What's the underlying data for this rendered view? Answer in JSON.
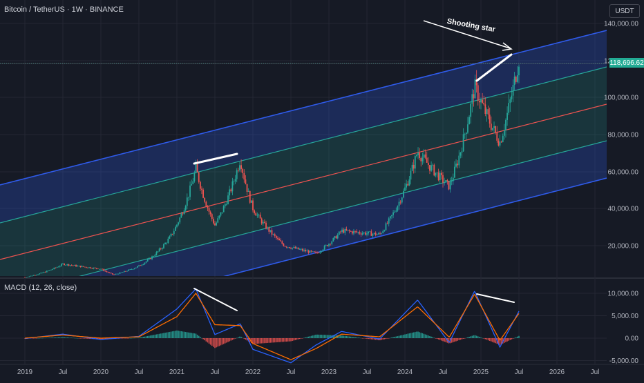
{
  "header": {
    "title": "Bitcoin / TetherUS · 1W · BINANCE",
    "currency": "USDT"
  },
  "annotation": "Shooting star",
  "price_badge": "118,696.62",
  "macd_title": "MACD (12, 26, close)",
  "colors": {
    "background": "#161a25",
    "channel_outer": "#2f5bea",
    "channel_inner": "#26a69a",
    "channel_mid": "#ef5350",
    "candle_up": "#26a69a",
    "candle_down": "#ef5350",
    "macd_line": "#2962ff",
    "signal_line": "#ff6d00",
    "annotation": "#ffffff"
  },
  "chart_data": [
    {
      "type": "candlestick",
      "title": "Bitcoin / TetherUS · 1W · BINANCE",
      "x_ticks": [
        "2019",
        "Jul",
        "2020",
        "Jul",
        "2021",
        "Jul",
        "2022",
        "Jul",
        "2023",
        "Jul",
        "2024",
        "Jul",
        "2025",
        "Jul",
        "2026",
        "Jul"
      ],
      "y_ticks": [
        "140,000.00",
        "120,000.00",
        "100,000.00",
        "80,000.00",
        "60,000.00",
        "40,000.00",
        "20,000.00"
      ],
      "ylim": [
        5000,
        143000
      ],
      "last_price": 118696.62,
      "price_path": [
        [
          "2019-01",
          3700
        ],
        [
          "2019-07",
          10500
        ],
        [
          "2020-01",
          8000
        ],
        [
          "2020-03",
          5000
        ],
        [
          "2020-07",
          9500
        ],
        [
          "2020-12",
          25000
        ],
        [
          "2021-04",
          62000
        ],
        [
          "2021-07",
          31000
        ],
        [
          "2021-11",
          67000
        ],
        [
          "2022-01",
          40000
        ],
        [
          "2022-06",
          20000
        ],
        [
          "2022-11",
          16000
        ],
        [
          "2023-03",
          28000
        ],
        [
          "2023-09",
          26000
        ],
        [
          "2024-03",
          71000
        ],
        [
          "2024-08",
          52000
        ],
        [
          "2024-12",
          106000
        ],
        [
          "2025-04",
          76000
        ],
        [
          "2025-07",
          121000
        ]
      ],
      "annotations": [
        "Shooting star"
      ]
    },
    {
      "type": "line",
      "title": "MACD (12, 26, close)",
      "y_ticks": [
        "10,000.00",
        "5,000.00",
        "0.00",
        "-5,000.00"
      ],
      "ylim": [
        -6000,
        12000
      ],
      "series": [
        {
          "values": [
            [
              "2019-01",
              -100
            ],
            [
              "2019-07",
              900
            ],
            [
              "2020-01",
              -300
            ],
            [
              "2020-07",
              400
            ],
            [
              "2021-01",
              6500
            ],
            [
              "2021-04",
              11000
            ],
            [
              "2021-07",
              800
            ],
            [
              "2021-11",
              3200
            ],
            [
              "2022-01",
              -2500
            ],
            [
              "2022-07",
              -5500
            ],
            [
              "2022-11",
              -1500
            ],
            [
              "2023-03",
              1500
            ],
            [
              "2023-09",
              -200
            ],
            [
              "2024-03",
              8500
            ],
            [
              "2024-08",
              -1000
            ],
            [
              "2024-12",
              10500
            ],
            [
              "2025-04",
              -2000
            ],
            [
              "2025-07",
              6000
            ]
          ]
        },
        {
          "values": [
            [
              "2019-01",
              0
            ],
            [
              "2019-07",
              700
            ],
            [
              "2020-01",
              0
            ],
            [
              "2020-07",
              300
            ],
            [
              "2021-01",
              4800
            ],
            [
              "2021-04",
              10000
            ],
            [
              "2021-07",
              3000
            ],
            [
              "2021-11",
              2800
            ],
            [
              "2022-01",
              -1200
            ],
            [
              "2022-07",
              -4800
            ],
            [
              "2022-11",
              -2300
            ],
            [
              "2023-03",
              900
            ],
            [
              "2023-09",
              300
            ],
            [
              "2024-03",
              7000
            ],
            [
              "2024-08",
              200
            ],
            [
              "2024-12",
              9800
            ],
            [
              "2025-04",
              -500
            ],
            [
              "2025-07",
              5500
            ]
          ]
        }
      ]
    }
  ]
}
